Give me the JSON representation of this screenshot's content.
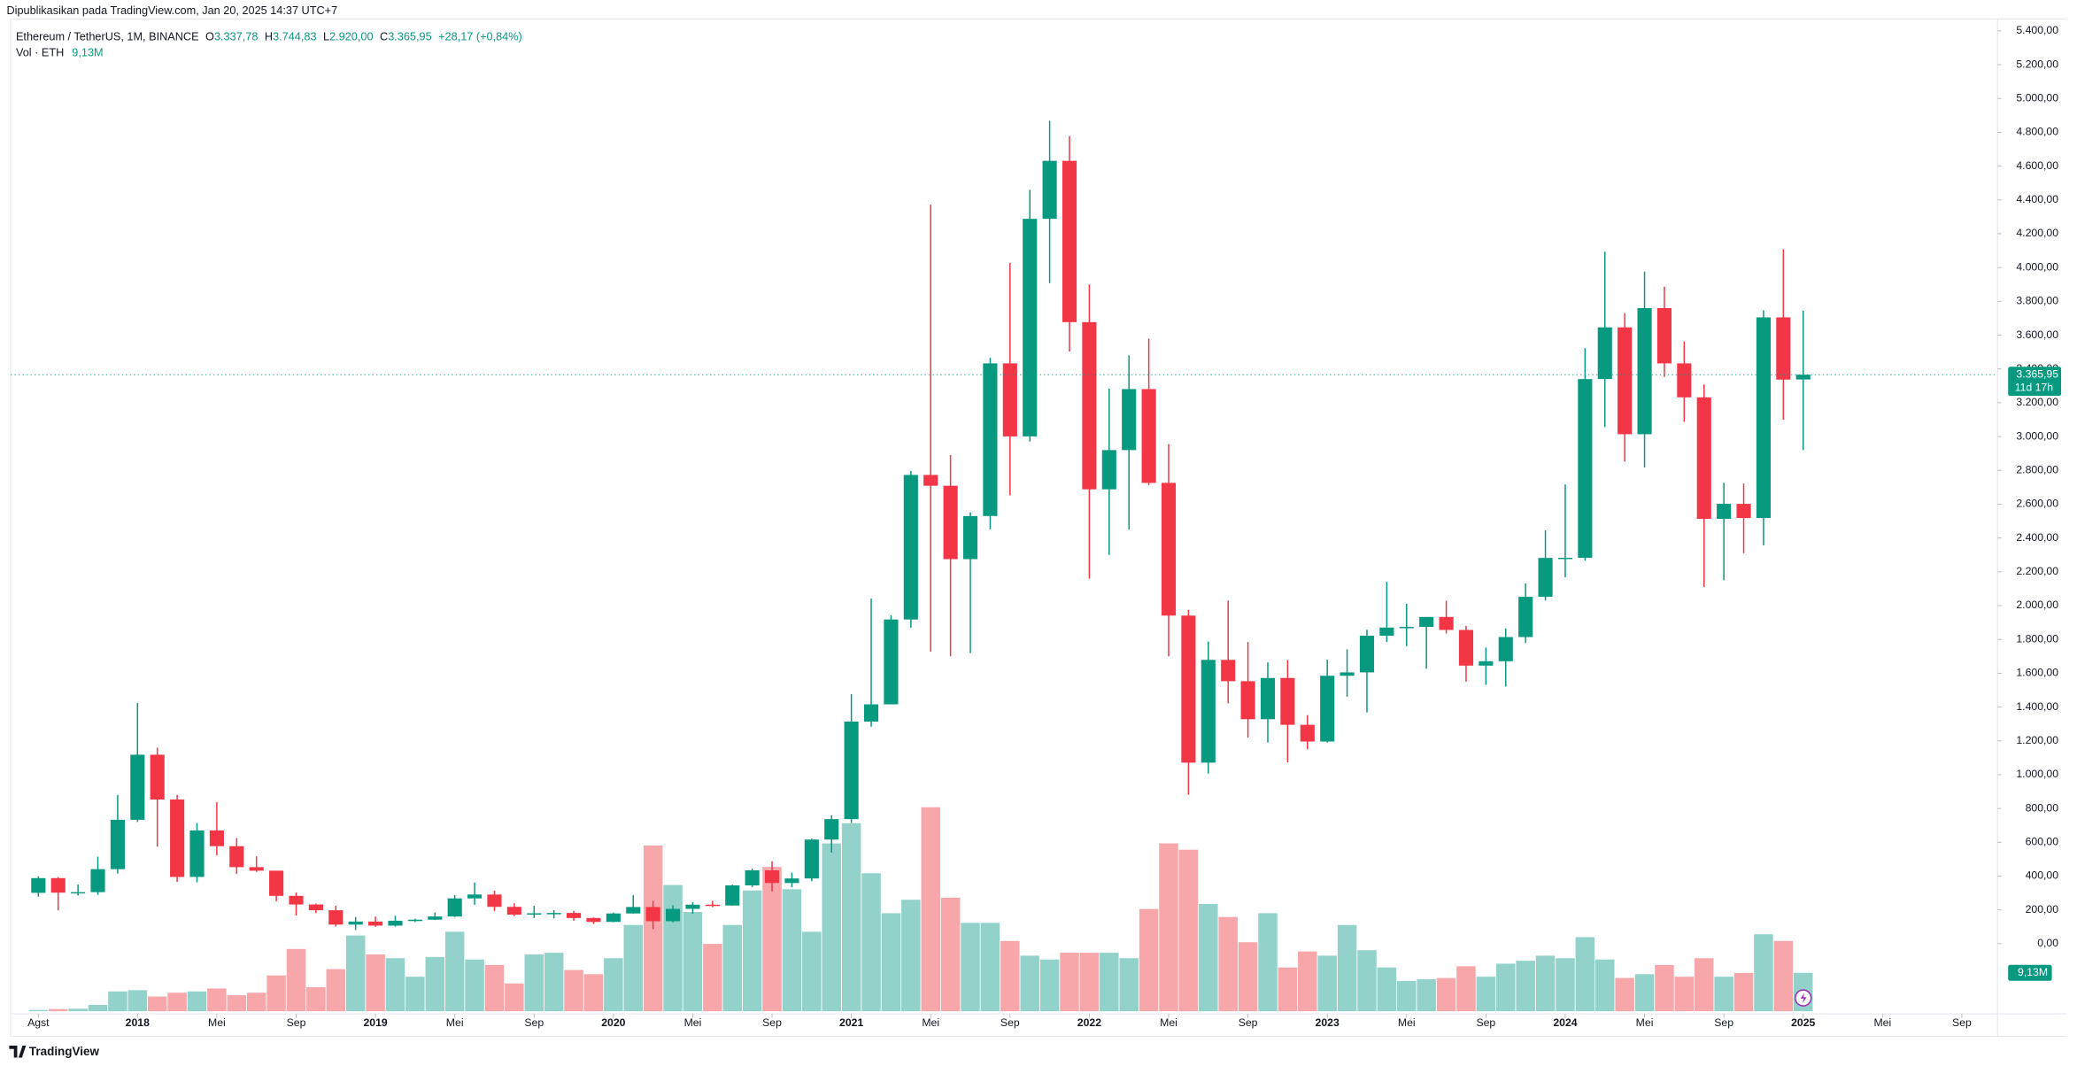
{
  "header": {
    "published": "Dipublikasikan pada TradingView.com, Jan 20, 2025 14:37 UTC+7",
    "symbol": "Ethereum / TetherUS, 1M, BINANCE",
    "o_label": "O",
    "o": "3.337,78",
    "h_label": "H",
    "h": "3.744,83",
    "l_label": "L",
    "l": "2.920,00",
    "c_label": "C",
    "c": "3.365,95",
    "change": "+28,17 (+0,84%)",
    "vol_label": "Vol · ETH",
    "vol_value": "9,13M",
    "countdown": "11d 17h",
    "brand": "TradingView"
  },
  "chart_data": {
    "type": "candlestick",
    "up_color": "#089981",
    "down_color": "#f23645",
    "volume_up_color": "#92d2ca",
    "volume_down_color": "#f7a7aa",
    "grid": false,
    "ylim": [
      -415,
      5470
    ],
    "xlim": [
      -1.4,
      98.8
    ],
    "yticks": [
      {
        "value": 0,
        "label": "0,00"
      },
      {
        "value": 200,
        "label": "200,00"
      },
      {
        "value": 400,
        "label": "400,00"
      },
      {
        "value": 600,
        "label": "600,00"
      },
      {
        "value": 800,
        "label": "800,00"
      },
      {
        "value": 1000,
        "label": "1.000,00"
      },
      {
        "value": 1200,
        "label": "1.200,00"
      },
      {
        "value": 1400,
        "label": "1.400,00"
      },
      {
        "value": 1600,
        "label": "1.600,00"
      },
      {
        "value": 1800,
        "label": "1.800,00"
      },
      {
        "value": 2000,
        "label": "2.000,00"
      },
      {
        "value": 2200,
        "label": "2.200,00"
      },
      {
        "value": 2400,
        "label": "2.400,00"
      },
      {
        "value": 2600,
        "label": "2.600,00"
      },
      {
        "value": 2800,
        "label": "2.800,00"
      },
      {
        "value": 3000,
        "label": "3.000,00"
      },
      {
        "value": 3200,
        "label": "3.200,00"
      },
      {
        "value": 3400,
        "label": "3.400,00"
      },
      {
        "value": 3600,
        "label": "3.600,00"
      },
      {
        "value": 3800,
        "label": "3.800,00"
      },
      {
        "value": 4000,
        "label": "4.000,00"
      },
      {
        "value": 4200,
        "label": "4.200,00"
      },
      {
        "value": 4400,
        "label": "4.400,00"
      },
      {
        "value": 4600,
        "label": "4.600,00"
      },
      {
        "value": 4800,
        "label": "4.800,00"
      },
      {
        "value": 5000,
        "label": "5.000,00"
      },
      {
        "value": 5200,
        "label": "5.200,00"
      },
      {
        "value": 5400,
        "label": "5.400,00"
      }
    ],
    "xticks": [
      {
        "value": 0,
        "label": "Agst"
      },
      {
        "value": 5,
        "label": "2018"
      },
      {
        "value": 9,
        "label": "Mei"
      },
      {
        "value": 13,
        "label": "Sep"
      },
      {
        "value": 17,
        "label": "2019"
      },
      {
        "value": 21,
        "label": "Mei"
      },
      {
        "value": 25,
        "label": "Sep"
      },
      {
        "value": 29,
        "label": "2020"
      },
      {
        "value": 33,
        "label": "Mei"
      },
      {
        "value": 37,
        "label": "Sep"
      },
      {
        "value": 41,
        "label": "2021"
      },
      {
        "value": 45,
        "label": "Mei"
      },
      {
        "value": 49,
        "label": "Sep"
      },
      {
        "value": 53,
        "label": "2022"
      },
      {
        "value": 57,
        "label": "Mei"
      },
      {
        "value": 61,
        "label": "Sep"
      },
      {
        "value": 65,
        "label": "2023"
      },
      {
        "value": 69,
        "label": "Mei"
      },
      {
        "value": 73,
        "label": "Sep"
      },
      {
        "value": 77,
        "label": "2024"
      },
      {
        "value": 81,
        "label": "Mei"
      },
      {
        "value": 85,
        "label": "Sep"
      },
      {
        "value": 89,
        "label": "2025"
      },
      {
        "value": 93,
        "label": "Mei"
      },
      {
        "value": 97,
        "label": "Sep"
      }
    ],
    "open": [
      301,
      388,
      302,
      305,
      441,
      733,
      1118,
      853,
      395,
      670,
      577,
      453,
      432,
      283,
      232,
      198,
      113,
      131,
      107,
      136,
      142,
      161,
      268,
      291,
      218,
      172,
      180,
      182,
      152,
      129,
      179,
      217,
      133,
      206,
      231,
      226,
      345,
      434,
      359,
      386,
      616,
      737,
      1314,
      1416,
      1918,
      2773,
      2709,
      2275,
      2530,
      3433,
      3001,
      4288,
      4631,
      3677,
      2688,
      2920,
      3281,
      2726,
      1941,
      1071,
      1679,
      1553,
      1328,
      1572,
      1295,
      1196,
      1585,
      1605,
      1822,
      1870,
      1874,
      1933,
      1856,
      1645,
      1671,
      1814,
      2052,
      2282,
      2283,
      3340,
      3646,
      3014,
      3760,
      3433,
      3232,
      2513,
      2602,
      2518,
      3705,
      3337.78
    ],
    "high": [
      399,
      394,
      350,
      515,
      880,
      1424,
      1160,
      880,
      714,
      838,
      625,
      517,
      432,
      303,
      237,
      225,
      158,
      161,
      165,
      148,
      185,
      288,
      362,
      314,
      239,
      224,
      198,
      195,
      155,
      184,
      288,
      253,
      227,
      245,
      254,
      349,
      445,
      488,
      420,
      622,
      760,
      1476,
      2041,
      1943,
      2797,
      4372,
      2891,
      2551,
      3466,
      4027,
      4460,
      4868,
      4778,
      3900,
      3283,
      3481,
      3580,
      2955,
      1975,
      1788,
      2030,
      1785,
      1664,
      1679,
      1352,
      1680,
      1742,
      1857,
      2141,
      2011,
      1929,
      2029,
      1880,
      1752,
      1865,
      2131,
      2445,
      2717,
      3523,
      4093,
      3730,
      3976,
      3887,
      3563,
      3308,
      2726,
      2722,
      3747,
      4109,
      3744.83
    ],
    "low": [
      278,
      197,
      285,
      288,
      415,
      720,
      574,
      366,
      363,
      522,
      413,
      425,
      251,
      167,
      181,
      102,
      81,
      100,
      101,
      128,
      140,
      158,
      230,
      193,
      163,
      152,
      150,
      136,
      117,
      127,
      178,
      86,
      126,
      177,
      216,
      225,
      335,
      308,
      334,
      370,
      539,
      714,
      1284,
      1431,
      1869,
      1728,
      1701,
      1719,
      2451,
      2652,
      2970,
      3907,
      3503,
      2159,
      2300,
      2450,
      2713,
      1700,
      881,
      1006,
      1422,
      1220,
      1190,
      1073,
      1150,
      1190,
      1461,
      1368,
      1785,
      1760,
      1626,
      1835,
      1550,
      1531,
      1521,
      1779,
      2030,
      2167,
      2266,
      3056,
      2852,
      2817,
      3353,
      3087,
      2111,
      2150,
      2310,
      2357,
      3099,
      2920.0
    ],
    "close": [
      388,
      302,
      305,
      441,
      733,
      1118,
      853,
      395,
      670,
      577,
      453,
      432,
      283,
      232,
      198,
      113,
      131,
      107,
      136,
      142,
      161,
      268,
      291,
      218,
      172,
      180,
      182,
      152,
      129,
      179,
      217,
      133,
      206,
      231,
      226,
      345,
      434,
      359,
      386,
      616,
      737,
      1314,
      1416,
      1918,
      2773,
      2709,
      2275,
      2530,
      3433,
      3001,
      4288,
      4631,
      3677,
      2688,
      2920,
      3281,
      2726,
      1941,
      1071,
      1679,
      1553,
      1328,
      1572,
      1295,
      1196,
      1585,
      1605,
      1822,
      1870,
      1874,
      1933,
      1856,
      1645,
      1671,
      1814,
      2052,
      2282,
      2283,
      3340,
      3646,
      3014,
      3760,
      3433,
      3232,
      2513,
      2602,
      2518,
      3705,
      3337,
      3365.95
    ],
    "volume": [
      0.3,
      0.5,
      0.6,
      1.5,
      4.7,
      5,
      3.5,
      4.4,
      4.7,
      5.4,
      3.8,
      4.4,
      8.5,
      14.8,
      5.7,
      10,
      18,
      13.5,
      12.6,
      8.2,
      12.9,
      18.9,
      12.3,
      11,
      6.6,
      13.5,
      13.9,
      9.8,
      8.8,
      12.6,
      20.5,
      39.4,
      30,
      23.6,
      16,
      20.5,
      28.7,
      34.3,
      29,
      18.9,
      39.9,
      44.7,
      32.8,
      23.3,
      26.5,
      48.5,
      27,
      21,
      21,
      16.7,
      13.2,
      12.3,
      13.9,
      13.9,
      13.9,
      12.6,
      24.3,
      39.9,
      38.4,
      25.5,
      22.4,
      16.4,
      23.3,
      10.4,
      14.2,
      13.2,
      20.5,
      14.5,
      10.4,
      7.2,
      7.6,
      7.9,
      10.7,
      8.2,
      11.3,
      12,
      13.2,
      12.6,
      17.6,
      12.3,
      7.9,
      8.8,
      11,
      8.2,
      12.6,
      8.2,
      9.1,
      18.3,
      16.7,
      9.13
    ]
  }
}
